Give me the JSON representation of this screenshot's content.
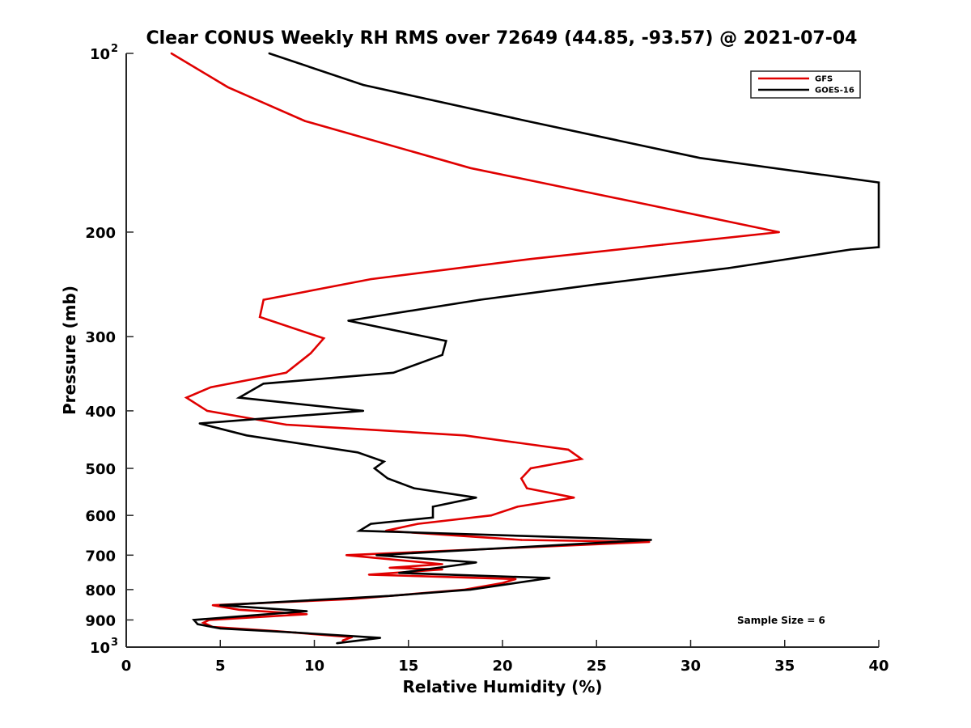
{
  "chart_data": {
    "type": "line",
    "title": "Clear CONUS Weekly RH RMS over 72649 (44.85, -93.57) @ 2021-07-04",
    "xlabel": "Relative Humidity (%)",
    "ylabel": "Pressure (mb)",
    "xlim": [
      0,
      40
    ],
    "ylim": [
      100,
      1000
    ],
    "y_scale": "log",
    "y_reversed": true,
    "grid": false,
    "legend_position": "top-right",
    "annotation": "Sample Size = 6",
    "x_ticks": [
      {
        "value": 0,
        "label": "0"
      },
      {
        "value": 5,
        "label": "5"
      },
      {
        "value": 10,
        "label": "10"
      },
      {
        "value": 15,
        "label": "15"
      },
      {
        "value": 20,
        "label": "20"
      },
      {
        "value": 25,
        "label": "25"
      },
      {
        "value": 30,
        "label": "30"
      },
      {
        "value": 35,
        "label": "35"
      },
      {
        "value": 40,
        "label": "40"
      }
    ],
    "y_ticks": [
      {
        "value": 100,
        "base": "10",
        "exp": "2"
      },
      {
        "value": 200,
        "label": "200"
      },
      {
        "value": 300,
        "label": "300"
      },
      {
        "value": 400,
        "label": "400"
      },
      {
        "value": 500,
        "label": "500"
      },
      {
        "value": 600,
        "label": "600"
      },
      {
        "value": 700,
        "label": "700"
      },
      {
        "value": 800,
        "label": "800"
      },
      {
        "value": 900,
        "label": "900"
      },
      {
        "value": 1000,
        "base": "10",
        "exp": "3"
      }
    ],
    "series": [
      {
        "name": "GFS",
        "color": "#e00000",
        "points": [
          [
            2.4,
            100
          ],
          [
            5.4,
            114
          ],
          [
            9.5,
            130
          ],
          [
            18.3,
            156
          ],
          [
            27.8,
            180
          ],
          [
            34.7,
            200
          ],
          [
            28.5,
            210
          ],
          [
            21.5,
            222
          ],
          [
            13.0,
            240
          ],
          [
            7.3,
            260
          ],
          [
            7.1,
            278
          ],
          [
            10.5,
            302
          ],
          [
            9.8,
            320
          ],
          [
            8.5,
            345
          ],
          [
            4.5,
            365
          ],
          [
            3.2,
            380
          ],
          [
            4.3,
            400
          ],
          [
            8.5,
            422
          ],
          [
            18.0,
            440
          ],
          [
            23.5,
            465
          ],
          [
            24.2,
            482
          ],
          [
            21.5,
            500
          ],
          [
            21.0,
            520
          ],
          [
            21.3,
            540
          ],
          [
            23.8,
            560
          ],
          [
            20.8,
            580
          ],
          [
            19.4,
            600
          ],
          [
            15.5,
            620
          ],
          [
            13.8,
            637
          ],
          [
            21.0,
            660
          ],
          [
            27.8,
            665
          ],
          [
            11.7,
            700
          ],
          [
            16.8,
            725
          ],
          [
            14.0,
            735
          ],
          [
            16.8,
            740
          ],
          [
            12.9,
            755
          ],
          [
            20.7,
            768
          ],
          [
            20.0,
            780
          ],
          [
            18.0,
            800
          ],
          [
            12.0,
            830
          ],
          [
            4.6,
            850
          ],
          [
            6.0,
            865
          ],
          [
            9.6,
            880
          ],
          [
            4.4,
            900
          ],
          [
            4.1,
            910
          ],
          [
            4.6,
            925
          ],
          [
            8.0,
            940
          ],
          [
            12.0,
            962
          ],
          [
            11.5,
            975
          ]
        ]
      },
      {
        "name": "GOES-16",
        "color": "#000000",
        "points": [
          [
            7.6,
            100
          ],
          [
            12.6,
            113
          ],
          [
            21.3,
            130
          ],
          [
            30.5,
            150
          ],
          [
            40.0,
            165
          ],
          [
            40.0,
            212
          ],
          [
            38.5,
            214
          ],
          [
            32.0,
            230
          ],
          [
            25.0,
            245
          ],
          [
            18.8,
            260
          ],
          [
            11.8,
            282
          ],
          [
            17.0,
            305
          ],
          [
            16.8,
            322
          ],
          [
            14.2,
            345
          ],
          [
            7.3,
            360
          ],
          [
            6.0,
            380
          ],
          [
            12.6,
            400
          ],
          [
            3.9,
            420
          ],
          [
            6.4,
            440
          ],
          [
            12.3,
            470
          ],
          [
            13.7,
            487
          ],
          [
            13.2,
            500
          ],
          [
            13.9,
            520
          ],
          [
            15.3,
            540
          ],
          [
            18.6,
            560
          ],
          [
            16.3,
            580
          ],
          [
            16.3,
            605
          ],
          [
            13.0,
            620
          ],
          [
            12.4,
            637
          ],
          [
            27.9,
            660
          ],
          [
            13.3,
            700
          ],
          [
            18.6,
            720
          ],
          [
            16.6,
            735
          ],
          [
            14.5,
            750
          ],
          [
            22.5,
            765
          ],
          [
            18.3,
            800
          ],
          [
            14.0,
            820
          ],
          [
            5.0,
            850
          ],
          [
            9.6,
            870
          ],
          [
            3.6,
            900
          ],
          [
            3.8,
            915
          ],
          [
            5.0,
            930
          ],
          [
            9.0,
            945
          ],
          [
            13.5,
            965
          ],
          [
            11.2,
            985
          ]
        ]
      }
    ]
  }
}
